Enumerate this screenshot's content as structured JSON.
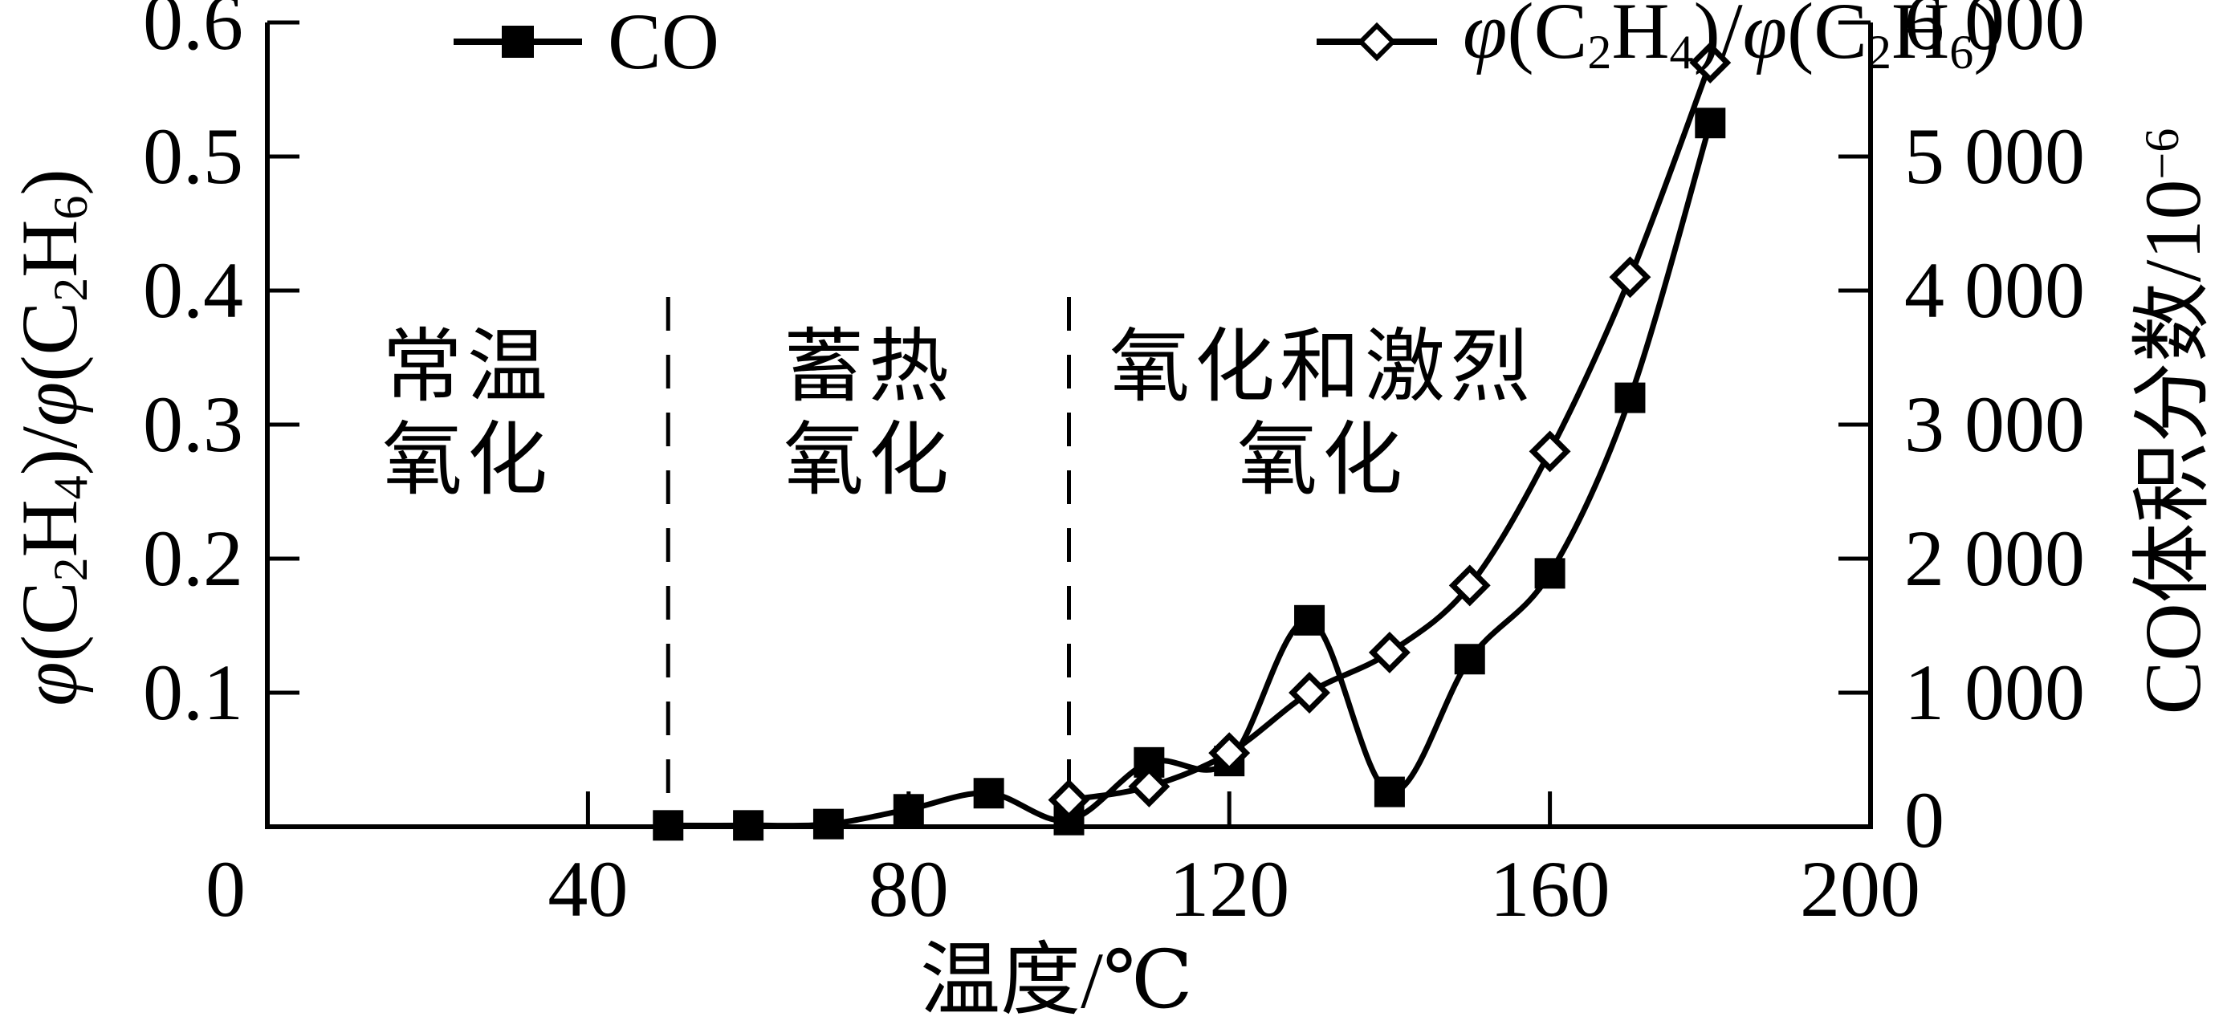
{
  "chart_data": {
    "type": "line",
    "background_color": "#ffffff",
    "line_color": "#000000",
    "grid": false,
    "legend_position": "top",
    "x_axis": {
      "title_rich": [
        {
          "t": "温度/℃"
        }
      ],
      "range": [
        0,
        200
      ],
      "ticks": [
        {
          "v": 0,
          "label": "0"
        },
        {
          "v": 40,
          "label": "40"
        },
        {
          "v": 80,
          "label": "80"
        },
        {
          "v": 120,
          "label": "120"
        },
        {
          "v": 160,
          "label": "160"
        },
        {
          "v": 200,
          "label": "200"
        }
      ]
    },
    "y_axis_left": {
      "title_rich": [
        {
          "t": "φ",
          "i": true
        },
        {
          "t": "(C"
        },
        {
          "t": "2",
          "sub": true
        },
        {
          "t": "H"
        },
        {
          "t": "4",
          "sub": true
        },
        {
          "t": ")/"
        },
        {
          "t": "φ",
          "i": true
        },
        {
          "t": "(C"
        },
        {
          "t": "2",
          "sub": true
        },
        {
          "t": "H"
        },
        {
          "t": "6",
          "sub": true
        },
        {
          "t": ")"
        }
      ],
      "range": [
        0,
        0.6
      ],
      "ticks": [
        {
          "v": 0.1,
          "label": "0.1"
        },
        {
          "v": 0.2,
          "label": "0.2"
        },
        {
          "v": 0.3,
          "label": "0.3"
        },
        {
          "v": 0.4,
          "label": "0.4"
        },
        {
          "v": 0.5,
          "label": "0.5"
        },
        {
          "v": 0.6,
          "label": "0.6"
        }
      ]
    },
    "y_axis_right": {
      "title_rich": [
        {
          "t": "CO体积分数/10"
        },
        {
          "t": "−6",
          "sup": true
        }
      ],
      "range": [
        0,
        6000
      ],
      "ticks": [
        {
          "v": 0,
          "label": "0"
        },
        {
          "v": 1000,
          "label": "1 000"
        },
        {
          "v": 2000,
          "label": "2 000"
        },
        {
          "v": 3000,
          "label": "3 000"
        },
        {
          "v": 4000,
          "label": "4 000"
        },
        {
          "v": 5000,
          "label": "5 000"
        },
        {
          "v": 6000,
          "label": "6 000"
        }
      ]
    },
    "series": [
      {
        "id": "ratio",
        "axis": "left",
        "marker": "open-diamond",
        "name_rich": [
          {
            "t": "φ",
            "i": true
          },
          {
            "t": "(C"
          },
          {
            "t": "2",
            "sub": true
          },
          {
            "t": "H"
          },
          {
            "t": "4",
            "sub": true
          },
          {
            "t": ")/"
          },
          {
            "t": "φ",
            "i": true
          },
          {
            "t": "(C"
          },
          {
            "t": "2",
            "sub": true
          },
          {
            "t": "H"
          },
          {
            "t": "6",
            "sub": true
          },
          {
            "t": ")"
          }
        ],
        "points": [
          [
            100,
            0.02
          ],
          [
            110,
            0.03
          ],
          [
            120,
            0.055
          ],
          [
            130,
            0.1
          ],
          [
            140,
            0.13
          ],
          [
            150,
            0.18
          ],
          [
            160,
            0.28
          ],
          [
            170,
            0.41
          ],
          [
            180,
            0.57
          ]
        ]
      },
      {
        "id": "co",
        "axis": "right",
        "marker": "filled-square",
        "name_rich": [
          {
            "t": "CO"
          }
        ],
        "points": [
          [
            50,
            10
          ],
          [
            60,
            10
          ],
          [
            70,
            20
          ],
          [
            80,
            130
          ],
          [
            90,
            250
          ],
          [
            100,
            50
          ],
          [
            110,
            480
          ],
          [
            120,
            490
          ],
          [
            130,
            1540
          ],
          [
            140,
            260
          ],
          [
            150,
            1250
          ],
          [
            160,
            1890
          ],
          [
            170,
            3200
          ],
          [
            180,
            5250
          ]
        ]
      }
    ],
    "region_dividers_x": [
      50,
      100
    ],
    "regions": [
      {
        "lines": [
          "常温",
          "氧化"
        ]
      },
      {
        "lines": [
          "蓄热",
          "氧化"
        ]
      },
      {
        "lines": [
          "氧化和激烈",
          "氧化"
        ]
      }
    ]
  }
}
